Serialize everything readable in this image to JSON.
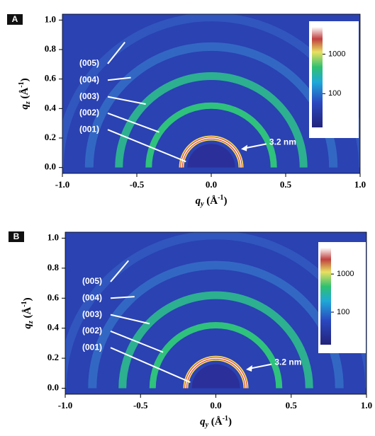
{
  "chart_data": [
    {
      "type": "heatmap",
      "panel": "A",
      "xlim": [
        -1,
        1
      ],
      "ylim": [
        -0.04,
        1.04
      ],
      "xticks": [
        {
          "value": -1,
          "label": "-1.0"
        },
        -0.5,
        {
          "value": 0,
          "label": "0.0"
        },
        0.5,
        {
          "value": 1,
          "label": "1.0"
        }
      ],
      "yticks": [
        {
          "value": 0,
          "label": "0.0"
        },
        0.2,
        0.4,
        0.6,
        0.8,
        {
          "value": 1,
          "label": "1.0"
        }
      ],
      "xlabel": [
        "q",
        "y",
        " (Å",
        "-1",
        ")"
      ],
      "ylabel": [
        "q",
        "z",
        " (Å",
        "-1",
        ")"
      ],
      "background": "#2a42b2",
      "beamstop": 0.16,
      "beamstop_color": "#2b2f9a",
      "rings": [
        {
          "name": "(001)",
          "q": 0.2,
          "color": "#f2d860"
        },
        {
          "name": "(002)",
          "q": 0.42,
          "color": "#2fc27c"
        },
        {
          "name": "(003)",
          "q": 0.62,
          "color": "#2cb090"
        },
        {
          "name": "(004)",
          "q": 0.82,
          "color": "#3a86d4"
        },
        {
          "name": "(005)",
          "q": 1.02,
          "color": "#3768c8"
        }
      ],
      "annotation": "3.2 nm",
      "colorbar": {
        "scale": "log",
        "clim": [
          14,
          4900
        ],
        "ticks": [
          100,
          1000
        ]
      }
    },
    {
      "type": "heatmap",
      "panel": "B",
      "xlim": [
        -1,
        1
      ],
      "ylim": [
        -0.04,
        1.04
      ],
      "xticks": [
        {
          "value": -1,
          "label": "-1.0"
        },
        -0.5,
        {
          "value": 0,
          "label": "0.0"
        },
        0.5,
        {
          "value": 1,
          "label": "1.0"
        }
      ],
      "yticks": [
        {
          "value": 0,
          "label": "0.0"
        },
        0.2,
        0.4,
        0.6,
        0.8,
        {
          "value": 1,
          "label": "1.0"
        }
      ],
      "xlabel": [
        "q",
        "y",
        " (Å",
        "-1",
        ")"
      ],
      "ylabel": [
        "q",
        "z",
        " (Å",
        "-1",
        ")"
      ],
      "background": "#2a42b2",
      "beamstop": 0.16,
      "beamstop_color": "#2b2f9a",
      "rings": [
        {
          "name": "(001)",
          "q": 0.2,
          "color": "#f2d860"
        },
        {
          "name": "(002)",
          "q": 0.42,
          "color": "#2fc27c"
        },
        {
          "name": "(003)",
          "q": 0.62,
          "color": "#2cb090"
        },
        {
          "name": "(004)",
          "q": 0.82,
          "color": "#3a86d4"
        },
        {
          "name": "(005)",
          "q": 1.02,
          "color": "#3768c8"
        }
      ],
      "annotation": "3.2 nm",
      "colorbar": {
        "scale": "log",
        "clim": [
          14,
          4900
        ],
        "ticks": [
          100,
          1000
        ]
      }
    }
  ]
}
